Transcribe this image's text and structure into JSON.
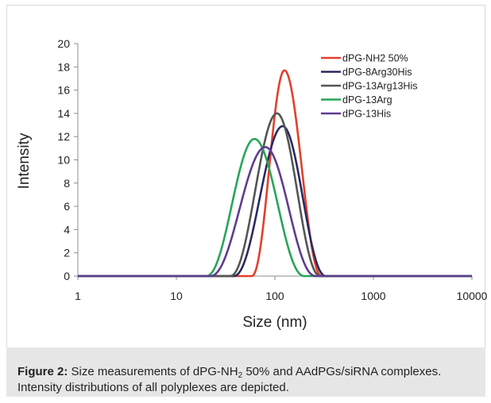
{
  "chart_data": {
    "type": "line",
    "xlabel": "Size (nm)",
    "ylabel": "Intensity",
    "xscale": "log",
    "xlim": [
      1,
      10000
    ],
    "ylim": [
      0,
      20
    ],
    "x_ticks": [
      1,
      10,
      100,
      1000,
      10000
    ],
    "x_tick_labels": [
      "1",
      "10",
      "100",
      "1000",
      "10000"
    ],
    "y_ticks": [
      0,
      2,
      4,
      6,
      8,
      10,
      12,
      14,
      16,
      18,
      20
    ],
    "grid": false,
    "legend_position": "top-right",
    "series": [
      {
        "name": "dPG-NH2 50%",
        "color": "#e2402b",
        "peak_x": 125,
        "peak_y": 17.7,
        "x_start": 58,
        "x_end": 300
      },
      {
        "name": "dPG-8Arg30His",
        "color": "#2a2a62",
        "peak_x": 120,
        "peak_y": 12.9,
        "x_start": 38,
        "x_end": 330
      },
      {
        "name": "dPG-13Arg13His",
        "color": "#555555",
        "peak_x": 105,
        "peak_y": 14.0,
        "x_start": 35,
        "x_end": 290
      },
      {
        "name": "dPG-13Arg",
        "color": "#27a55a",
        "peak_x": 62,
        "peak_y": 11.8,
        "x_start": 20,
        "x_end": 200
      },
      {
        "name": "dPG-13His",
        "color": "#5e3c90",
        "peak_x": 80,
        "peak_y": 11.1,
        "x_start": 22,
        "x_end": 260
      }
    ]
  },
  "caption": {
    "figure_label": "Figure 2:",
    "text_before_sub": " Size measurements of dPG-NH",
    "sub": "2",
    "text_after_sub": " 50% and AAdPGs/siRNA complexes. Intensity distributions of all polyplexes are depicted."
  }
}
